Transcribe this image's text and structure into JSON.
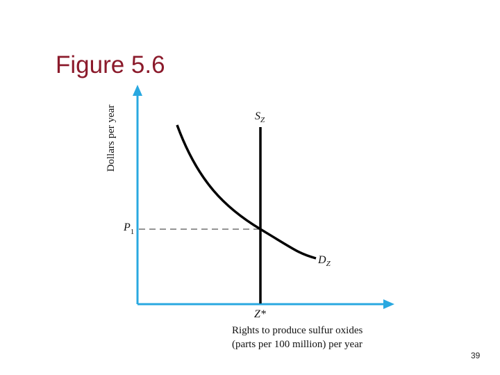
{
  "header": {
    "title": "Figure 5.6"
  },
  "diagram": {
    "y_axis_label": "Dollars per year",
    "supply_label": {
      "letter": "S",
      "sub": "Z"
    },
    "price_label": {
      "letter": "P",
      "sub": "1"
    },
    "demand_label": {
      "letter": "D",
      "sub": "Z"
    },
    "quantity_label": "Z*",
    "x_axis_label": [
      "Rights to produce sulfur oxides",
      "(parts per 100 million) per year"
    ]
  },
  "footer": {
    "page_number": "39"
  }
}
